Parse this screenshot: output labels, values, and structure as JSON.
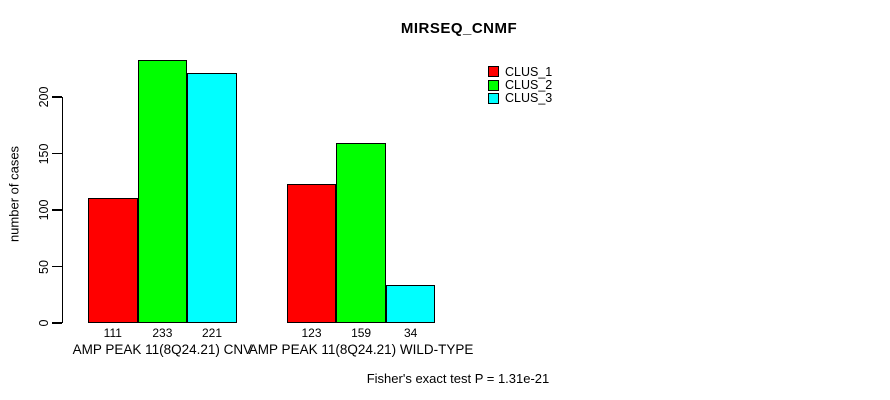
{
  "chart_data": {
    "type": "bar",
    "title": "MIRSEQ_CNMF",
    "ylabel": "number of cases",
    "xlabel": "",
    "yticks": [
      0,
      50,
      100,
      150,
      200
    ],
    "ylim": [
      0,
      240
    ],
    "grid": false,
    "legend_position": "right-of-plot-top",
    "categories": [
      "AMP PEAK 11(8Q24.21) CNV",
      "AMP PEAK 11(8Q24.21) WILD-TYPE"
    ],
    "series": [
      {
        "name": "CLUS_1",
        "color": "#ff0000",
        "values": [
          111,
          123
        ]
      },
      {
        "name": "CLUS_2",
        "color": "#00ff00",
        "values": [
          233,
          159
        ]
      },
      {
        "name": "CLUS_3",
        "color": "#00ffff",
        "values": [
          221,
          34
        ]
      }
    ],
    "bar_value_labels_shown": true,
    "annotation": "Fisher's exact test P = 1.31e-21",
    "colors": {
      "background": "#ffffff",
      "axis": "#000000",
      "text": "#000000"
    }
  }
}
